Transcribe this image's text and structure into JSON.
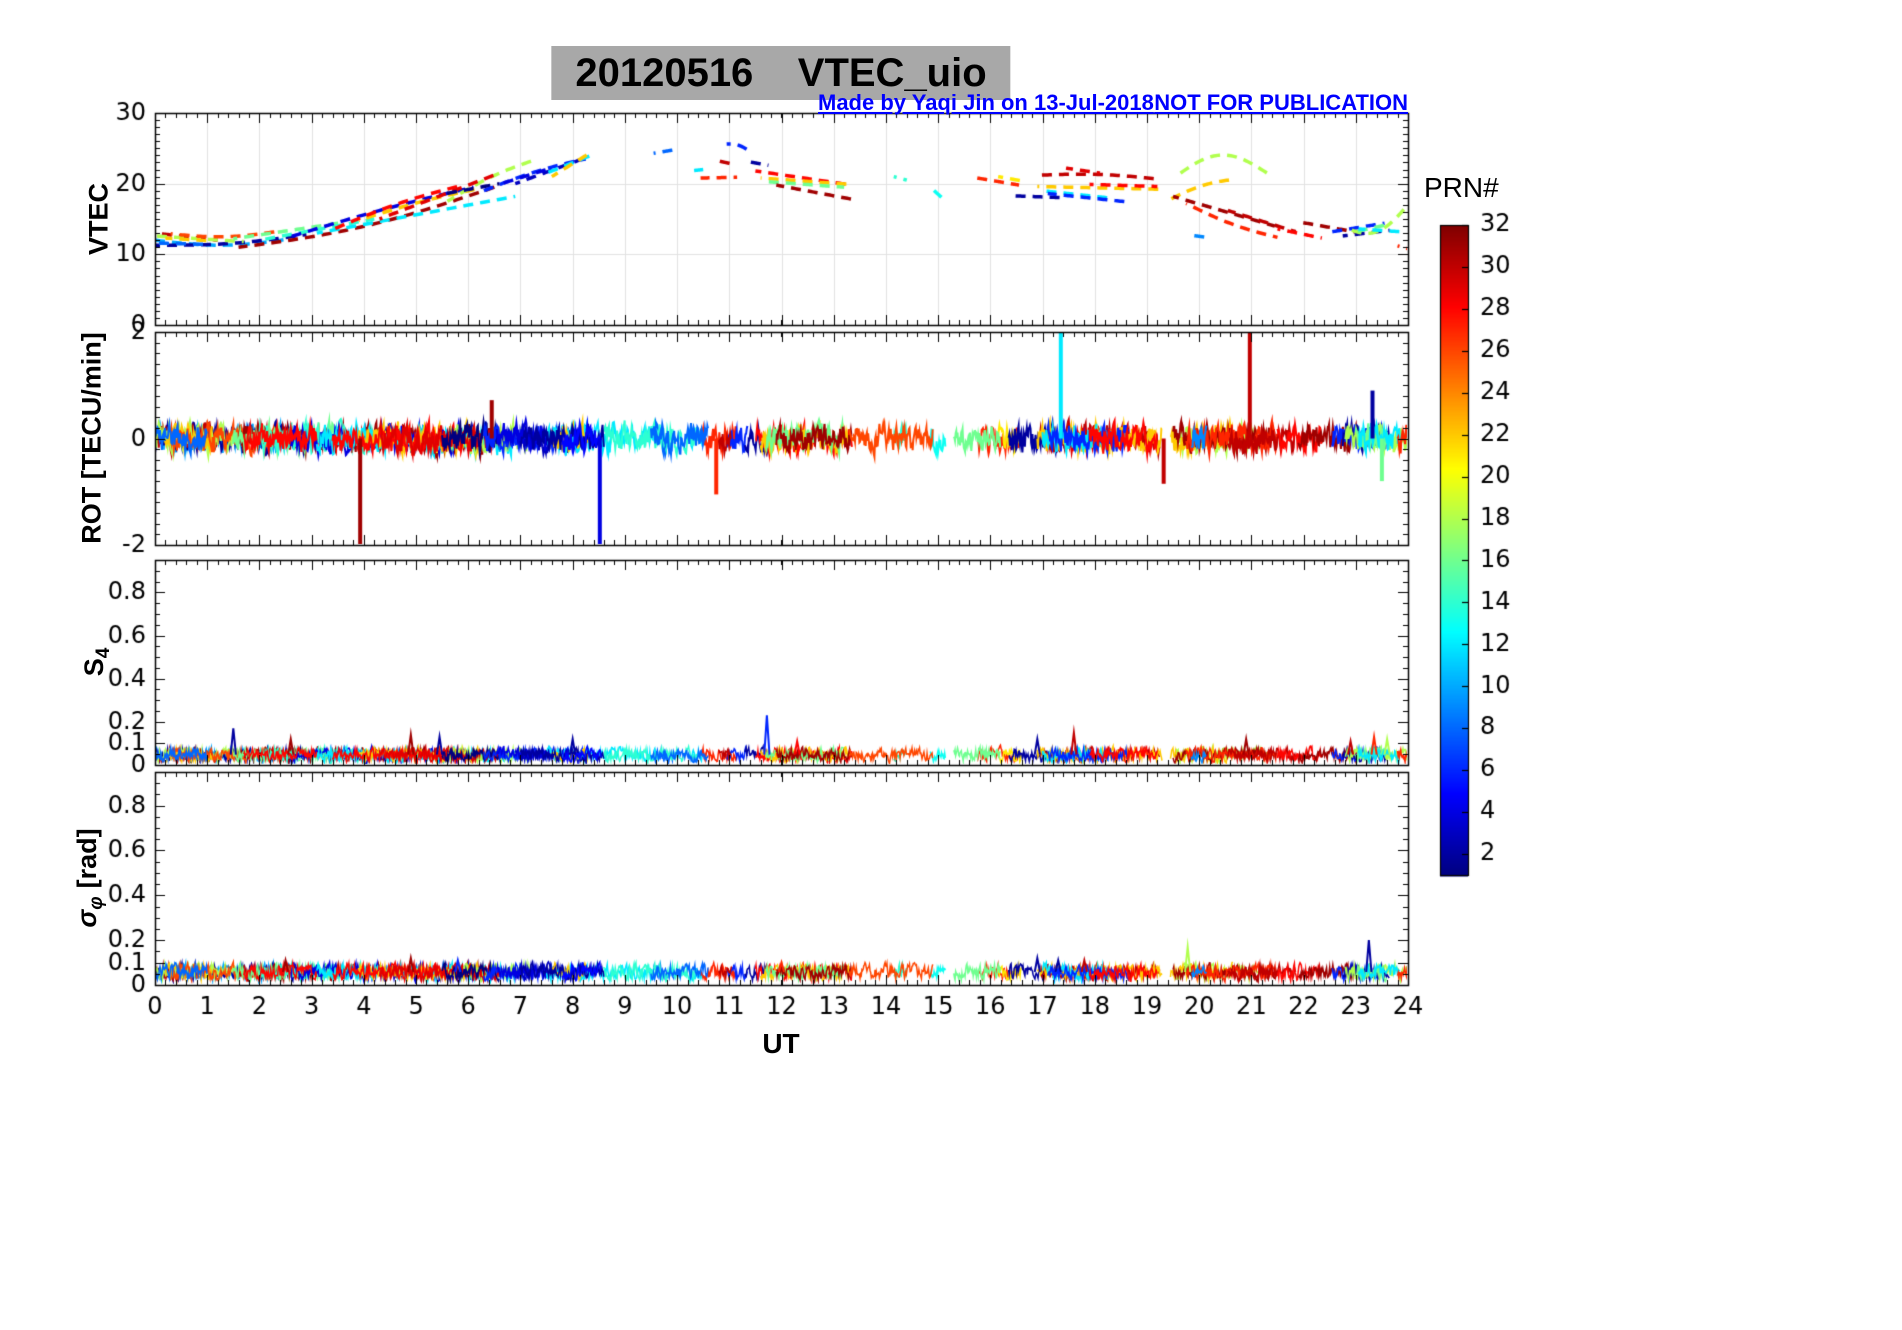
{
  "title": {
    "text": "20120516    VTEC_uio",
    "bg_color": "#a8a8a8"
  },
  "annotations": {
    "made_by": "Made by Yaqi Jin on 13-Jul-2018",
    "not_for_publication": "NOT FOR PUBLICATION",
    "color": "#0000ff"
  },
  "xaxis": {
    "label": "UT",
    "min": 0,
    "max": 24,
    "major_step": 1,
    "minor_step": 0.2,
    "ticks": [
      0,
      1,
      2,
      3,
      4,
      5,
      6,
      7,
      8,
      9,
      10,
      11,
      12,
      13,
      14,
      15,
      16,
      17,
      18,
      19,
      20,
      21,
      22,
      23,
      24
    ]
  },
  "colorbar": {
    "label": "PRN#",
    "min": 1,
    "max": 32,
    "colormap": "jet",
    "ticks": [
      2,
      4,
      6,
      8,
      10,
      12,
      14,
      16,
      18,
      20,
      22,
      24,
      26,
      28,
      30,
      32
    ]
  },
  "panels": [
    {
      "name": "vtec",
      "ylabel": "VTEC",
      "ylim": [
        0,
        30
      ],
      "yticks": [
        0,
        10,
        20,
        30
      ],
      "yminor": 1,
      "grid": true
    },
    {
      "name": "rot",
      "ylabel": "ROT [TECU/min]",
      "ylim": [
        -2,
        2
      ],
      "yticks": [
        -2,
        0,
        2
      ],
      "yminor": 0.2,
      "grid": false
    },
    {
      "name": "s4",
      "ylabel_base": "S",
      "ylabel_sub": "4",
      "ylim": [
        0,
        0.95
      ],
      "yticks": [
        0,
        0.1,
        0.2,
        0.4,
        0.6,
        0.8
      ],
      "yminor": 0.05,
      "grid": false
    },
    {
      "name": "sigma_phi",
      "ylabel_base": "σ",
      "ylabel_sub": "φ",
      "ylabel_unit": "[rad]",
      "ylim": [
        0,
        0.95
      ],
      "yticks": [
        0,
        0.1,
        0.2,
        0.4,
        0.6,
        0.8
      ],
      "yminor": 0.05,
      "grid": false
    }
  ],
  "chart_data": {
    "type": "line",
    "title": "20120516 VTEC_uio",
    "xlabel": "UT",
    "x_range_hours": [
      0,
      24
    ],
    "series_colored_by": "PRN# 1-32 (jet colormap)",
    "vtec_arcs_format": "[prn, t_start_h, t_end_h, vtec_start_TECU, vtec_end_TECU, curvature_bump]",
    "vtec_arcs": [
      [
        10,
        0.0,
        2.6,
        12.0,
        12.2,
        -0.8
      ],
      [
        2,
        0.0,
        2.9,
        11.3,
        12.8,
        -0.5
      ],
      [
        30,
        0.0,
        1.2,
        13.0,
        12.0,
        0
      ],
      [
        18,
        0.0,
        1.7,
        12.6,
        11.8,
        0
      ],
      [
        22,
        0.2,
        1.1,
        12.3,
        11.9,
        0
      ],
      [
        26,
        0.3,
        2.4,
        12.9,
        13.3,
        -0.6
      ],
      [
        8,
        0.0,
        1.0,
        11.6,
        11.4,
        0
      ],
      [
        31,
        1.6,
        6.5,
        11.0,
        19.5,
        -1.2
      ],
      [
        16,
        1.5,
        3.6,
        12.2,
        14.5,
        0
      ],
      [
        14,
        2.0,
        4.2,
        12.0,
        15.0,
        0
      ],
      [
        4,
        2.6,
        6.1,
        12.5,
        19.5,
        0.3
      ],
      [
        12,
        3.1,
        6.9,
        13.0,
        18.2,
        0
      ],
      [
        22,
        3.9,
        6.2,
        14.8,
        19.3,
        0.3
      ],
      [
        28,
        3.4,
        5.9,
        13.5,
        19.8,
        0.5
      ],
      [
        18,
        5.6,
        7.25,
        17.5,
        23.3,
        0.5
      ],
      [
        29,
        4.3,
        6.6,
        15.0,
        21.5,
        0
      ],
      [
        1,
        5.5,
        6.6,
        18.5,
        20.0,
        0
      ],
      [
        6,
        6.3,
        8.25,
        19.0,
        23.5,
        0.4
      ],
      [
        3,
        6.9,
        8.3,
        20.0,
        23.8,
        0
      ],
      [
        4,
        6.55,
        7.5,
        19.8,
        22.0,
        0
      ],
      [
        12,
        7.5,
        8.35,
        21.5,
        24.0,
        0
      ],
      [
        22,
        7.6,
        8.3,
        21.0,
        24.2,
        0
      ],
      [
        8,
        9.55,
        9.95,
        24.3,
        24.8,
        0
      ],
      [
        12,
        10.25,
        10.5,
        21.8,
        22.0,
        0
      ],
      [
        27,
        10.45,
        11.15,
        20.8,
        20.9,
        0
      ],
      [
        6,
        10.95,
        11.35,
        25.6,
        24.8,
        0.3
      ],
      [
        2,
        11.3,
        11.75,
        23.2,
        22.6,
        0
      ],
      [
        30,
        10.8,
        11.05,
        23.2,
        22.8,
        0
      ],
      [
        28,
        11.5,
        13.35,
        21.8,
        19.8,
        0
      ],
      [
        22,
        11.6,
        13.3,
        20.8,
        19.9,
        0
      ],
      [
        16,
        11.7,
        13.2,
        20.3,
        19.5,
        0
      ],
      [
        31,
        11.9,
        13.35,
        19.8,
        17.8,
        0
      ],
      [
        14,
        14.15,
        14.4,
        21.0,
        20.5,
        0
      ],
      [
        13,
        14.85,
        15.15,
        19.5,
        17.5,
        0
      ],
      [
        27,
        15.75,
        16.55,
        20.8,
        19.8,
        0
      ],
      [
        21,
        16.15,
        16.6,
        21.0,
        20.4,
        0
      ],
      [
        2,
        16.35,
        17.45,
        18.3,
        18.0,
        0
      ],
      [
        30,
        16.95,
        19.25,
        21.2,
        20.6,
        0.4
      ],
      [
        29,
        17.45,
        18.1,
        22.2,
        21.5,
        0
      ],
      [
        22,
        16.9,
        19.3,
        19.6,
        19.2,
        0
      ],
      [
        12,
        17.0,
        18.25,
        19.0,
        18.0,
        0
      ],
      [
        6,
        17.1,
        18.65,
        18.6,
        17.4,
        0
      ],
      [
        28,
        17.9,
        19.2,
        19.9,
        19.6,
        0
      ],
      [
        18,
        19.55,
        21.3,
        21.0,
        21.5,
        2.8
      ],
      [
        22,
        19.45,
        20.65,
        17.8,
        20.6,
        0.5
      ],
      [
        31,
        19.5,
        21.45,
        18.2,
        14.0,
        0
      ],
      [
        27,
        19.75,
        21.5,
        17.2,
        12.4,
        -0.5
      ],
      [
        9,
        19.85,
        20.15,
        12.7,
        12.4,
        0
      ],
      [
        30,
        20.55,
        21.85,
        16.2,
        13.2,
        0
      ],
      [
        28,
        21.5,
        22.35,
        13.6,
        12.3,
        0
      ],
      [
        31,
        21.9,
        23.05,
        14.6,
        13.1,
        0
      ],
      [
        6,
        22.55,
        23.55,
        13.2,
        14.4,
        0
      ],
      [
        2,
        22.75,
        23.65,
        12.6,
        13.4,
        0
      ],
      [
        18,
        22.8,
        24.0,
        13.8,
        17.0,
        -2.2
      ],
      [
        16,
        23.0,
        23.6,
        13.2,
        14.2,
        0
      ],
      [
        12,
        23.05,
        23.85,
        13.6,
        13.2,
        0
      ],
      [
        27,
        23.8,
        24.0,
        11.2,
        10.8,
        0
      ]
    ],
    "extra_intervals_format": "[prn, t_start_h, t_end_h] additional noisy-trace coverage",
    "extra_intervals": [
      [
        12,
        8.35,
        9.6
      ],
      [
        14,
        8.6,
        10.4
      ],
      [
        8,
        9.5,
        10.6
      ],
      [
        26,
        13.3,
        14.9
      ],
      [
        16,
        15.3,
        16.2
      ],
      [
        2,
        7.0,
        8.6
      ],
      [
        5,
        7.8,
        8.55
      ],
      [
        28,
        1.7,
        3.1
      ]
    ],
    "rot": {
      "baseline": 0,
      "noise_amp_TECU_per_min": 0.28
    },
    "rot_spikes_format": "[prn, t_h, value_TECU_per_min]",
    "rot_spikes": [
      [
        31,
        3.93,
        -2
      ],
      [
        4,
        8.52,
        -2
      ],
      [
        12,
        17.35,
        2
      ],
      [
        30,
        20.97,
        2
      ],
      [
        27,
        10.75,
        -1.05
      ],
      [
        31,
        6.45,
        0.72
      ],
      [
        30,
        19.32,
        -0.85
      ],
      [
        2,
        23.32,
        0.9
      ],
      [
        16,
        23.5,
        -0.8
      ]
    ],
    "s4": {
      "baseline": 0.048,
      "noise_amp": 0.032
    },
    "s4_bumps_format": "[prn, t_h, peak_value]",
    "s4_bumps": [
      [
        2,
        1.5,
        0.17
      ],
      [
        31,
        2.6,
        0.12
      ],
      [
        31,
        4.9,
        0.14
      ],
      [
        2,
        5.45,
        0.13
      ],
      [
        6,
        11.72,
        0.23
      ],
      [
        2,
        8.0,
        0.12
      ],
      [
        28,
        12.3,
        0.11
      ],
      [
        30,
        17.6,
        0.15
      ],
      [
        2,
        16.9,
        0.12
      ],
      [
        31,
        20.9,
        0.12
      ],
      [
        30,
        22.9,
        0.11
      ],
      [
        27,
        23.35,
        0.13
      ],
      [
        18,
        23.6,
        0.12
      ]
    ],
    "sigma_phi": {
      "baseline": 0.058,
      "noise_amp": 0.036
    },
    "sigma_bumps_format": "[prn, t_h, peak_value_rad]",
    "sigma_bumps": [
      [
        18,
        19.78,
        0.17
      ],
      [
        2,
        23.25,
        0.2
      ],
      [
        31,
        2.5,
        0.11
      ],
      [
        6,
        5.8,
        0.11
      ],
      [
        31,
        4.9,
        0.12
      ],
      [
        30,
        17.8,
        0.11
      ],
      [
        27,
        12.0,
        0.1
      ],
      [
        2,
        16.9,
        0.12
      ],
      [
        2,
        17.3,
        0.11
      ]
    ]
  }
}
